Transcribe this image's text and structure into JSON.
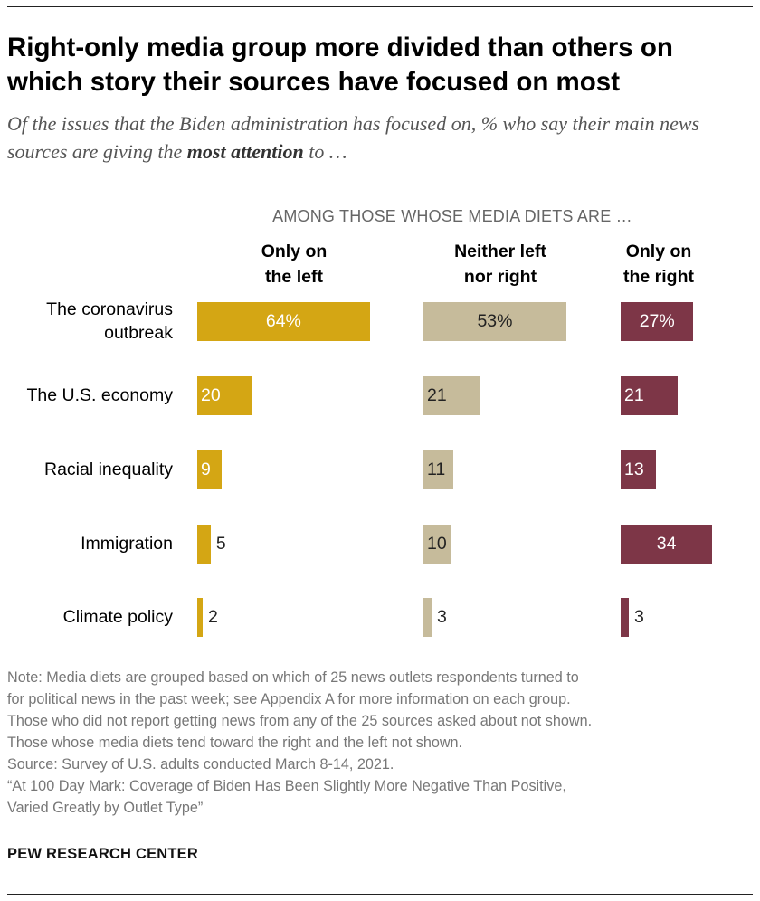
{
  "title": "Right-only media group more divided than others on which story their sources have focused on most",
  "subtitle": {
    "before": "Of the issues that the Biden administration has focused on, % who say their main news sources are giving the ",
    "emphasis": "most attention",
    "after": " to …"
  },
  "chart_data": {
    "type": "bar",
    "orientation": "horizontal",
    "group_label": "AMONG THOSE WHOSE MEDIA DIETS ARE …",
    "categories": [
      "The coronavirus outbreak",
      "The U.S. economy",
      "Racial inequality",
      "Immigration",
      "Climate policy"
    ],
    "series": [
      {
        "name": "Only on the left",
        "color": "#D4A614",
        "values": [
          64,
          20,
          9,
          5,
          2
        ],
        "labels": [
          "64%",
          "20",
          "9",
          "5",
          "2"
        ]
      },
      {
        "name": "Neither left nor right",
        "color": "#C6BB9B",
        "values": [
          53,
          21,
          11,
          10,
          3
        ],
        "labels": [
          "53%",
          "21",
          "11",
          "10",
          "3"
        ]
      },
      {
        "name": "Only on the right",
        "color": "#7D3647",
        "values": [
          27,
          21,
          13,
          34,
          3
        ],
        "labels": [
          "27%",
          "21",
          "13",
          "34",
          "3"
        ]
      }
    ]
  },
  "notes": [
    "Note: Media diets are grouped based on which of 25 news outlets respondents turned to",
    "for political news in the past week; see Appendix A for more information on each group.",
    "Those who did not report getting news from any of the 25 sources asked about not shown.",
    "Those whose media diets tend toward the right and the left not shown.",
    "Source: Survey of U.S. adults conducted March 8-14, 2021.",
    "“At 100 Day Mark: Coverage of Biden Has Been Slightly More Negative Than Positive,",
    "Varied Greatly by Outlet Type”"
  ],
  "footer": "PEW RESEARCH CENTER"
}
